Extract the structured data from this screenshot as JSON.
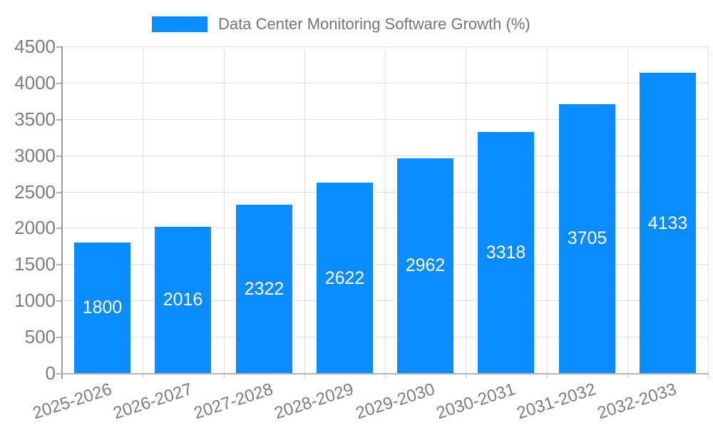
{
  "legend": {
    "label": "Data Center Monitoring Software Growth (%)"
  },
  "colors": {
    "bar": "#0a8cff",
    "bar_value_text": "#ffffff",
    "axis_text": "#7d7d7d",
    "legend_text": "#757575",
    "gridline": "#e3e3e3",
    "axis_line": "#b3b3b3"
  },
  "chart_data": {
    "type": "bar",
    "title": "Data Center Monitoring Software Growth (%)",
    "categories": [
      "2025-2026",
      "2026-2027",
      "2027-2028",
      "2028-2029",
      "2029-2030",
      "2030-2031",
      "2031-2032",
      "2032-2033"
    ],
    "values": [
      1800,
      2016,
      2322,
      2622,
      2962,
      3318,
      3705,
      4133
    ],
    "value_labels": [
      "1800",
      "2016",
      "2322",
      "2622",
      "2962",
      "3318",
      "3705",
      "4133"
    ],
    "xlabel": "",
    "ylabel": "",
    "ylim": [
      0,
      4500
    ],
    "yticks": [
      0,
      500,
      1000,
      1500,
      2000,
      2500,
      3000,
      3500,
      4000,
      4500
    ],
    "grid": true,
    "legend_position": "top"
  }
}
